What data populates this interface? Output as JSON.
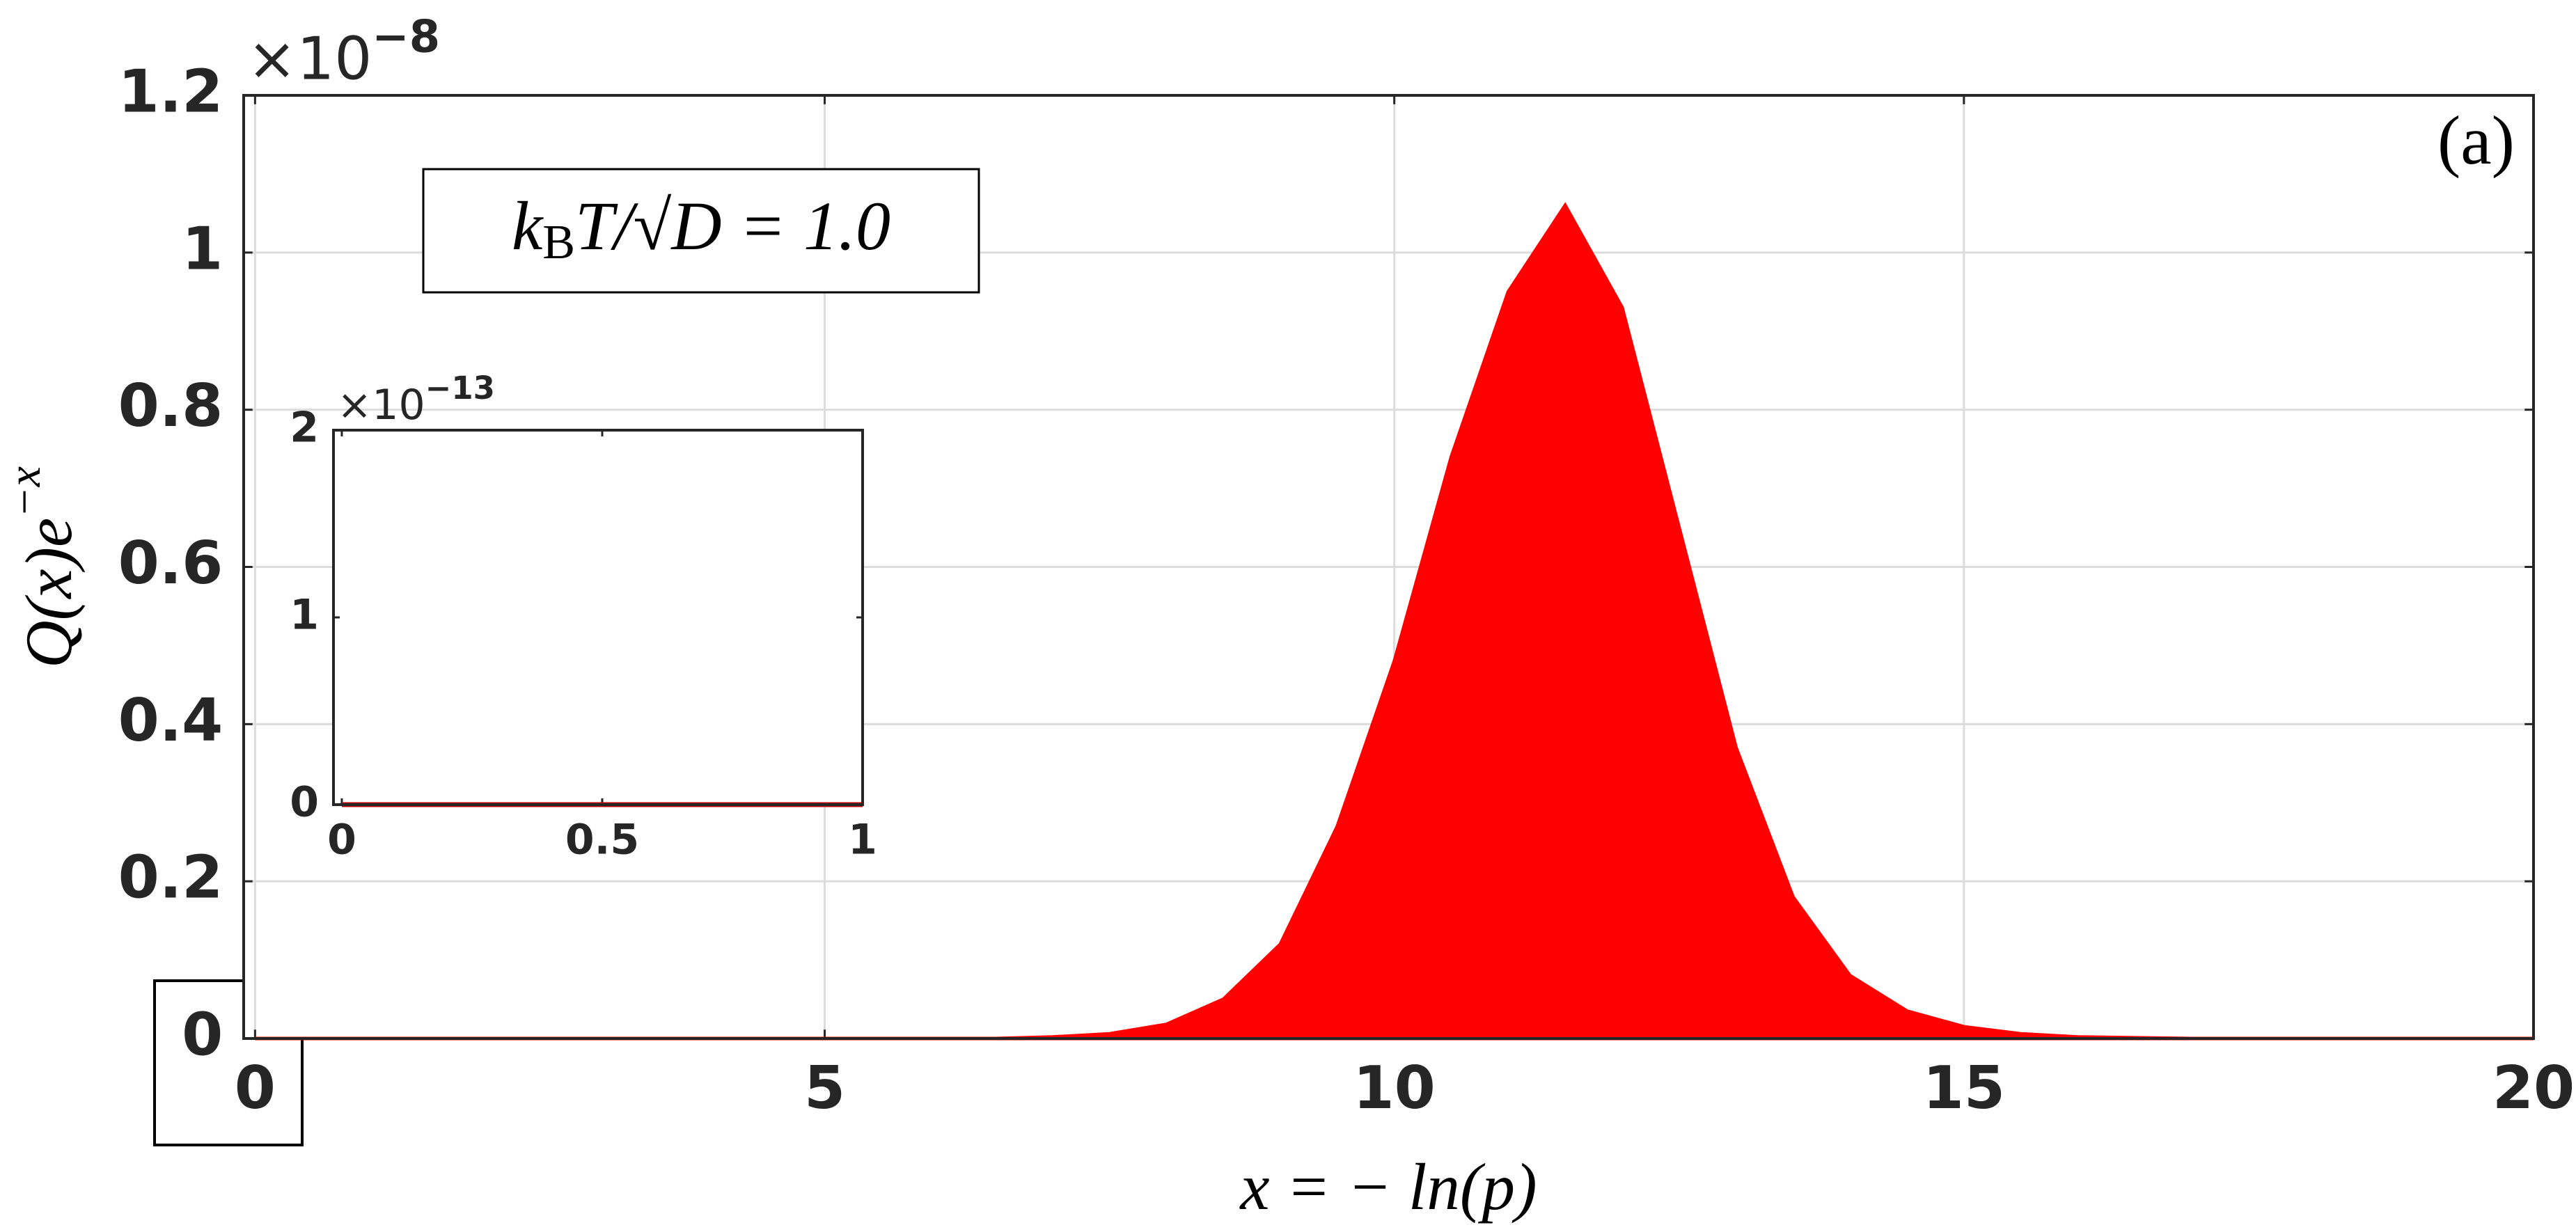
{
  "chart_data": [
    {
      "type": "area",
      "x": [
        0,
        0.5,
        1,
        1.5,
        2,
        2.5,
        3,
        3.5,
        4,
        4.5,
        5,
        5.5,
        6,
        6.5,
        7,
        7.5,
        8,
        8.5,
        9,
        9.5,
        10,
        10.5,
        11,
        11.5,
        12,
        12.5,
        13,
        13.5,
        14,
        14.5,
        15,
        15.5,
        16,
        16.5,
        17,
        17.5,
        18,
        18.5,
        19,
        19.5,
        20
      ],
      "values": [
        0,
        0,
        0,
        0,
        0,
        0,
        0,
        0,
        0,
        0,
        0,
        0,
        0,
        0,
        0.002,
        0.006,
        0.018,
        0.05,
        0.12,
        0.27,
        0.48,
        0.74,
        0.95,
        1.06,
        0.93,
        0.65,
        0.37,
        0.18,
        0.08,
        0.035,
        0.015,
        0.006,
        0.002,
        0.001,
        0,
        0,
        0,
        0,
        0,
        0,
        0
      ],
      "color": "#ff0000",
      "xlim": [
        -0.1,
        20
      ],
      "ylim": [
        0,
        1.2
      ],
      "xticks": [
        0,
        5,
        10,
        15,
        20
      ],
      "yticks": [
        0,
        0.2,
        0.4,
        0.6,
        0.8,
        1,
        1.2
      ],
      "grid": true,
      "y_multiplier": {
        "base": "×10",
        "exp": "−8"
      },
      "y_label": {
        "base": "Q(x)e",
        "exp": "−x"
      },
      "x_label": "x = − ln(p)",
      "annotation": {
        "k": "k",
        "sub": "B",
        "rest": "T/√D = 1.0"
      },
      "panel_label": "(a)"
    },
    {
      "type": "line",
      "x": [
        0,
        1
      ],
      "values": [
        0,
        0
      ],
      "color": "#c00000",
      "xlim": [
        -0.016,
        1
      ],
      "ylim": [
        0,
        2
      ],
      "xticks": [
        0,
        0.5,
        1
      ],
      "yticks": [
        0,
        1,
        2
      ],
      "grid": false,
      "y_multiplier": {
        "base": "×10",
        "exp": "−13"
      }
    }
  ]
}
